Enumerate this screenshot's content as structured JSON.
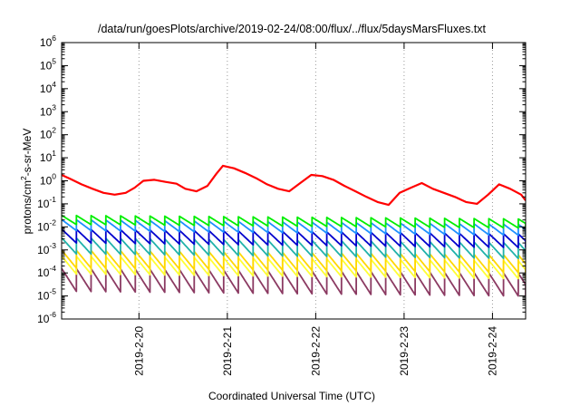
{
  "chart_data": {
    "type": "line",
    "title": "/data/run/goesPlots/archive/2019-02-24/08:00/flux/../flux/5daysMarsFluxes.txt",
    "xlabel": "Coordinated Universal Time (UTC)",
    "ylabel": {
      "pre": "protons/cm",
      "sup": "2",
      "post": "-s-sr-MeV"
    },
    "y_scale": "log",
    "ylim": [
      1e-06,
      1000000.0
    ],
    "y_ticks": [
      {
        "base": "10",
        "exp": "-6",
        "value": 1e-06
      },
      {
        "base": "10",
        "exp": "-5",
        "value": 1e-05
      },
      {
        "base": "10",
        "exp": "-4",
        "value": 0.0001
      },
      {
        "base": "10",
        "exp": "-3",
        "value": 0.001
      },
      {
        "base": "10",
        "exp": "-2",
        "value": 0.01
      },
      {
        "base": "10",
        "exp": "-1",
        "value": 0.1
      },
      {
        "base": "10",
        "exp": "0",
        "value": 1
      },
      {
        "base": "10",
        "exp": "1",
        "value": 10
      },
      {
        "base": "10",
        "exp": "2",
        "value": 100
      },
      {
        "base": "10",
        "exp": "3",
        "value": 1000
      },
      {
        "base": "10",
        "exp": "4",
        "value": 10000
      },
      {
        "base": "10",
        "exp": "5",
        "value": 100000
      },
      {
        "base": "10",
        "exp": "6",
        "value": 1000000
      }
    ],
    "xlim": [
      "2019-02-19 03:00",
      "2019-02-24 09:00"
    ],
    "x_ticks": [
      {
        "label": "2019-2-20",
        "value": "2019-02-20 00:00"
      },
      {
        "label": "2019-2-21",
        "value": "2019-02-21 00:00"
      },
      {
        "label": "2019-2-22",
        "value": "2019-02-22 00:00"
      },
      {
        "label": "2019-2-23",
        "value": "2019-02-23 00:00"
      },
      {
        "label": "2019-2-24",
        "value": "2019-02-24 00:00"
      }
    ],
    "grid": true,
    "x_grid": "vertical dotted lines at day ticks",
    "series": [
      {
        "color": "#ff0000",
        "pattern": "red-trend",
        "x": [
          "2019-02-19 03:00",
          "2019-02-19 05:24",
          "2019-02-19 08:24",
          "2019-02-19 11:24",
          "2019-02-19 14:24",
          "2019-02-19 17:24",
          "2019-02-19 20:24",
          "2019-02-19 22:48",
          "2019-02-20 01:12",
          "2019-02-20 04:12",
          "2019-02-20 07:12",
          "2019-02-20 10:12",
          "2019-02-20 12:36",
          "2019-02-20 15:36",
          "2019-02-20 18:36",
          "2019-02-20 21:00",
          "2019-02-20 22:48",
          "2019-02-21 01:48",
          "2019-02-21 04:48",
          "2019-02-21 07:48",
          "2019-02-21 10:48",
          "2019-02-21 13:48",
          "2019-02-21 16:48",
          "2019-02-21 19:48",
          "2019-02-21 22:48",
          "2019-02-22 01:48",
          "2019-02-22 04:48",
          "2019-02-22 07:48",
          "2019-02-22 10:48",
          "2019-02-22 13:48",
          "2019-02-22 16:48",
          "2019-02-22 19:48",
          "2019-02-22 22:48",
          "2019-02-23 01:48",
          "2019-02-23 04:48",
          "2019-02-23 07:48",
          "2019-02-23 10:48",
          "2019-02-23 13:48",
          "2019-02-23 16:48",
          "2019-02-23 19:48",
          "2019-02-23 22:48",
          "2019-02-24 01:48",
          "2019-02-24 04:48",
          "2019-02-24 07:48",
          "2019-02-24 09:00"
        ],
        "y": [
          1.8,
          1.2,
          0.7,
          0.45,
          0.3,
          0.25,
          0.3,
          0.5,
          1.0,
          1.1,
          0.9,
          0.75,
          0.45,
          0.35,
          0.6,
          2.0,
          4.5,
          3.5,
          2.2,
          1.3,
          0.7,
          0.45,
          0.35,
          0.8,
          1.8,
          1.6,
          1.1,
          0.6,
          0.35,
          0.2,
          0.12,
          0.09,
          0.3,
          0.5,
          0.8,
          0.45,
          0.3,
          0.2,
          0.12,
          0.1,
          0.25,
          0.7,
          0.45,
          0.25,
          0.14
        ]
      },
      {
        "color": "#00ee00",
        "pattern": "sawtooth",
        "base": 0.02,
        "amplitude": 2.5,
        "slope": -0.15
      },
      {
        "color": "#1e90ff",
        "pattern": "sawtooth",
        "base": 0.012,
        "amplitude": 3.0,
        "slope": -0.2
      },
      {
        "color": "#0000cd",
        "pattern": "sawtooth",
        "base": 0.004,
        "amplitude": 4.0,
        "slope": -0.2
      },
      {
        "color": "#20b2aa",
        "pattern": "sawtooth",
        "base": 0.0015,
        "amplitude": 5.0,
        "slope": -0.2
      },
      {
        "color": "#ffd700",
        "pattern": "sawtooth",
        "base": 0.0004,
        "amplitude": 6.0,
        "slope": -0.2
      },
      {
        "color": "#ffff33",
        "pattern": "sawtooth",
        "base": 0.00022,
        "amplitude": 6.0,
        "slope": -0.2
      },
      {
        "color": "#8b3a62",
        "pattern": "sawtooth",
        "base": 5e-05,
        "amplitude": 10.0,
        "slope": -0.2
      }
    ]
  }
}
